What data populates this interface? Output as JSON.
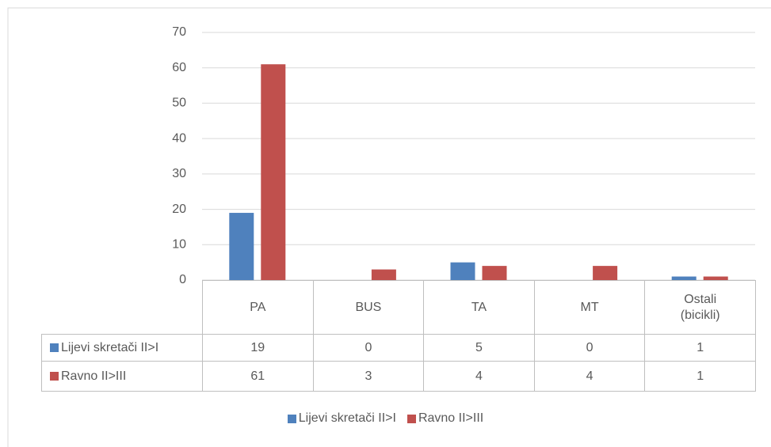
{
  "chart_data": {
    "type": "bar",
    "categories": [
      "PA",
      "BUS",
      "TA",
      "MT",
      "Ostali (bicikli)"
    ],
    "series": [
      {
        "name": "Lijevi skretači II>I",
        "color": "#4f81bd",
        "values": [
          19,
          0,
          5,
          0,
          1
        ]
      },
      {
        "name": "Ravno II>III",
        "color": "#c0504d",
        "values": [
          61,
          3,
          4,
          4,
          1
        ]
      }
    ],
    "ylim": [
      0,
      70
    ],
    "yticks": [
      0,
      10,
      20,
      30,
      40,
      50,
      60,
      70
    ],
    "grid": true,
    "data_table": true,
    "legend": "bottom"
  }
}
